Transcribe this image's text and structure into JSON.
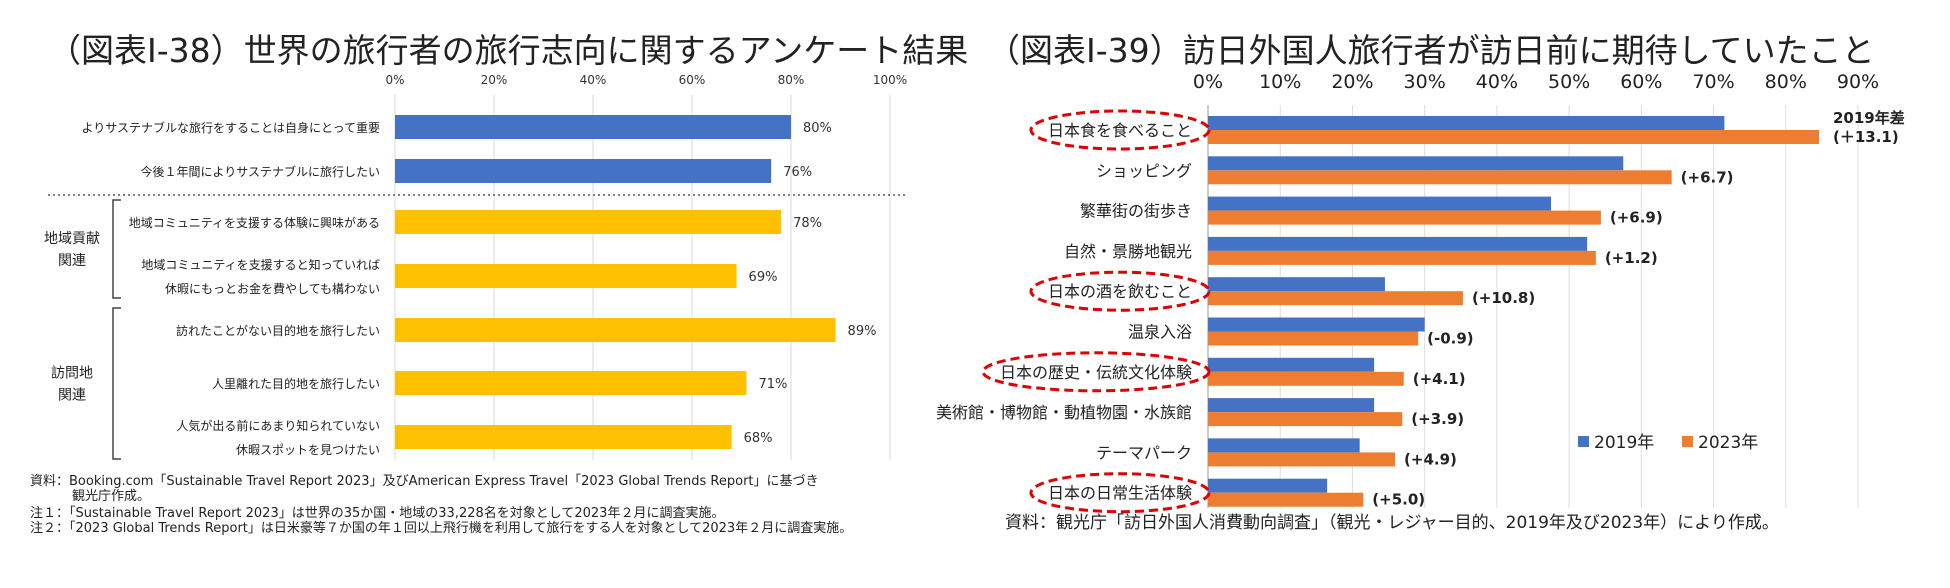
{
  "chart_data": [
    {
      "type": "bar",
      "orientation": "horizontal",
      "title": "（図表Ⅰ-38）世界の旅行者の旅行志向に関するアンケート結果",
      "x_ticks": [
        "0%",
        "20%",
        "40%",
        "60%",
        "80%",
        "100%"
      ],
      "xlim": [
        0,
        100
      ],
      "grid": true,
      "color": "#FFC000",
      "accent_color": "#4472C4",
      "categories": [
        [
          "よりサステナブルな旅行をすることは自身にとって重要"
        ],
        [
          "今後１年間によりサステナブルに旅行したい"
        ],
        [
          "地域コミュニティを支援する体験に興味がある"
        ],
        [
          "地域コミュニティを支援すると知っていれば",
          "休暇にもっとお金を費やしても構わない"
        ],
        [
          "訪れたことがない目的地を旅行したい"
        ],
        [
          "人里離れた目的地を旅行したい"
        ],
        [
          "人気が出る前にあまり知られていない",
          "休暇スポットを見つけたい"
        ]
      ],
      "values": [
        80,
        76,
        78,
        69,
        89,
        71,
        68
      ],
      "value_labels": [
        "80%",
        "76%",
        "78%",
        "69%",
        "89%",
        "71%",
        "68%"
      ],
      "groups": [
        {
          "lines": [
            "地域貢献",
            "関連"
          ],
          "rows": [
            2,
            3
          ]
        },
        {
          "lines": [
            "訪問地",
            "関連"
          ],
          "rows": [
            4,
            6
          ]
        }
      ],
      "notes": [
        "資料：Booking.com「Sustainable Travel Report 2023」及びAmerican Express Travel「2023 Global Trends Report」に基づき",
        "観光庁作成。",
        "注１：「Sustainable Travel Report 2023」は世界の35か国・地域の33,228名を対象として2023年２月に調査実施。",
        "注２：「2023 Global Trends Report」は日米豪等７か国の年１回以上飛行機を利用して旅行をする人を対象として2023年２月に調査実施。"
      ]
    },
    {
      "type": "bar",
      "orientation": "horizontal",
      "title": "（図表Ⅰ-39）訪日外国人旅行者が訪日前に期待していたこと",
      "x_ticks": [
        "0%",
        "10%",
        "20%",
        "30%",
        "40%",
        "50%",
        "60%",
        "70%",
        "80%",
        "90%"
      ],
      "xlim": [
        0,
        90
      ],
      "grid": true,
      "categories": [
        "日本食を食べること",
        "ショッピング",
        "繁華街の街歩き",
        "自然・景勝地観光",
        "日本の酒を飲むこと",
        "温泉入浴",
        "日本の歴史・伝統文化体験",
        "美術館・博物館・動植物園・水族館",
        "テーマパーク",
        "日本の日常生活体験"
      ],
      "highlighted": [
        0,
        4,
        6,
        9
      ],
      "series": [
        {
          "name": "2019年",
          "color": "#4472C4",
          "values": [
            71.5,
            57.5,
            47.5,
            52.5,
            24.5,
            30,
            23,
            23,
            21,
            16.5
          ]
        },
        {
          "name": "2023年",
          "color": "#ED7D31",
          "values": [
            84.6,
            64.2,
            54.4,
            53.7,
            35.3,
            29.1,
            27.1,
            26.9,
            25.9,
            21.5
          ]
        }
      ],
      "diff_header": "2019年差",
      "diff_labels": [
        "(＋13.1)",
        "(+6.7)",
        "(+6.9)",
        "(+1.2)",
        "(+10.8)",
        "(-0.9)",
        "(+4.1)",
        "(+3.9)",
        "(+4.9)",
        "(+5.0)"
      ],
      "legend_position": "right",
      "notes": [
        "資料：観光庁「訪日外国人消費動向調査」（観光・レジャー目的、2019年及び2023年）により作成。"
      ]
    }
  ]
}
